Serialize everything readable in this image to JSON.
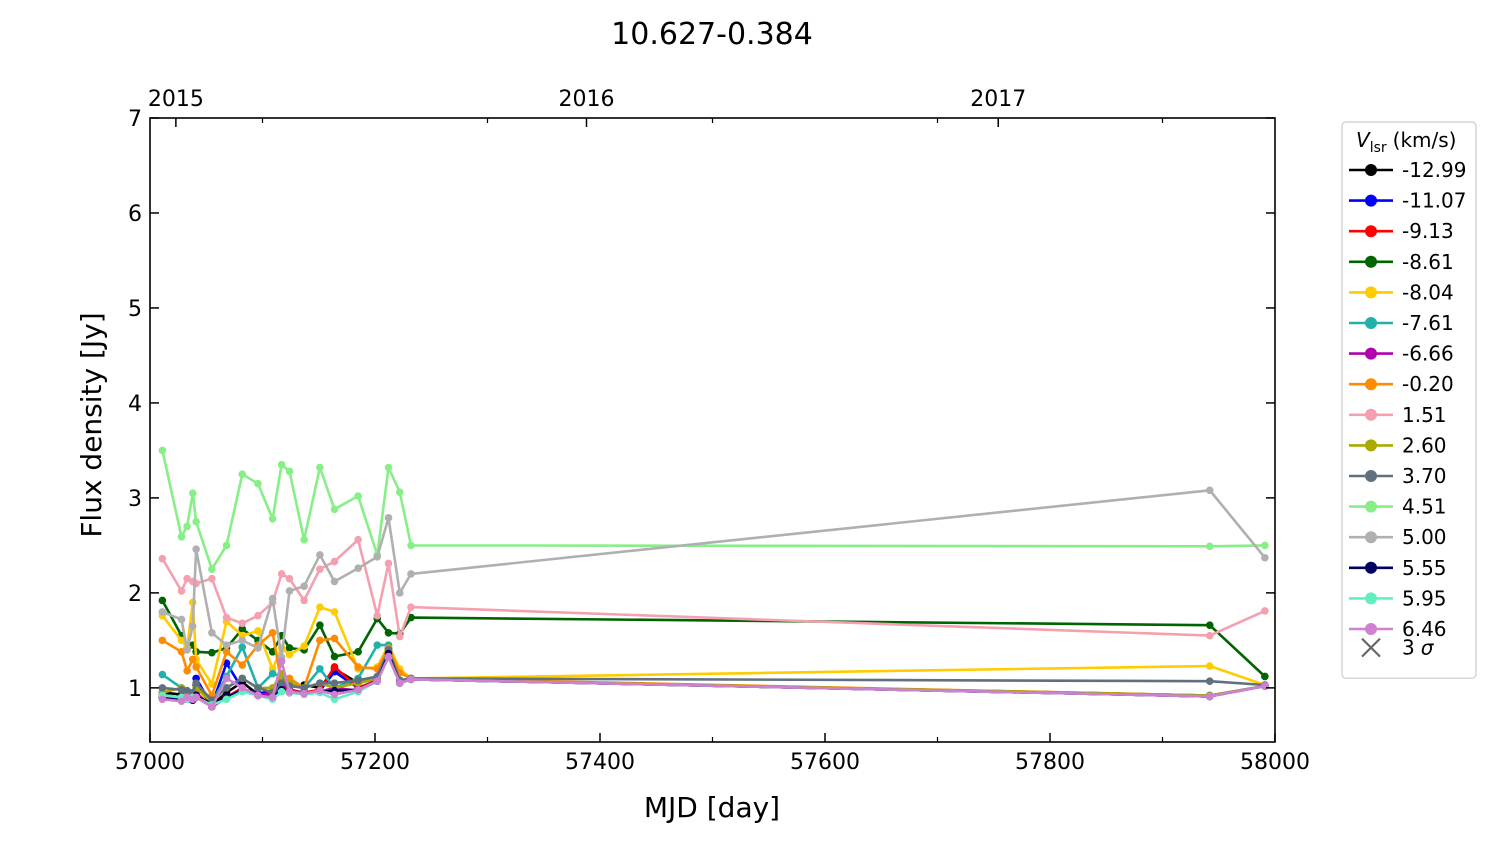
{
  "chart_data": {
    "type": "line",
    "title": "10.627-0.384",
    "xlabel": "MJD [day]",
    "ylabel": "Flux density [Jy]",
    "xlim": [
      57000,
      58000
    ],
    "ylim": [
      0.43,
      7
    ],
    "x_major_ticks": [
      57000,
      57200,
      57400,
      57600,
      57800,
      58000
    ],
    "x_minor_ticks": [
      57100,
      57300,
      57500,
      57700,
      57900
    ],
    "y_ticks": [
      1,
      2,
      3,
      4,
      5,
      6,
      7
    ],
    "top_axis": {
      "ticks": [
        {
          "label": "2015",
          "mjd": 57023
        },
        {
          "label": "2016",
          "mjd": 57388
        },
        {
          "label": "2017",
          "mjd": 57754
        }
      ]
    },
    "grid": false,
    "legend": {
      "title_symbol": "V",
      "title_subscript": "lsr",
      "title_unit": "(km/s)",
      "position": "outside-right",
      "sigma_label": "3",
      "sigma_symbol": "σ"
    },
    "x": [
      57011,
      57028,
      57033,
      57038,
      57041,
      57055,
      57068,
      57082,
      57096,
      57109,
      57117,
      57124,
      57137,
      57151,
      57164,
      57185,
      57202,
      57212,
      57222,
      57232,
      57942,
      57991
    ],
    "series": [
      {
        "name": "-12.99",
        "color": "#000000",
        "values": [
          0.95,
          0.93,
          0.9,
          0.88,
          1.03,
          0.82,
          0.95,
          1.06,
          0.93,
          0.94,
          1.1,
          1.02,
          1.03,
          1.0,
          1.2,
          1.05,
          1.1,
          1.4,
          1.07,
          1.09,
          0.91,
          1.02
        ]
      },
      {
        "name": "-11.07",
        "color": "#0000ff",
        "values": [
          0.92,
          0.9,
          0.93,
          0.9,
          1.1,
          0.82,
          1.26,
          0.99,
          0.94,
          0.97,
          1.12,
          0.98,
          0.95,
          0.97,
          1.17,
          1.0,
          1.08,
          1.42,
          1.06,
          1.09,
          0.92,
          1.02
        ]
      },
      {
        "name": "-9.13",
        "color": "#ff0000",
        "values": [
          0.9,
          0.88,
          0.9,
          0.88,
          0.95,
          0.8,
          0.9,
          1.0,
          0.92,
          0.95,
          1.05,
          0.97,
          0.95,
          0.98,
          1.22,
          1.0,
          1.08,
          1.38,
          1.06,
          1.09,
          0.91,
          1.02
        ]
      },
      {
        "name": "-8.61",
        "color": "#006400",
        "values": [
          1.92,
          1.55,
          1.42,
          1.45,
          1.38,
          1.37,
          1.42,
          1.62,
          1.5,
          1.38,
          1.55,
          1.42,
          1.4,
          1.66,
          1.33,
          1.38,
          1.73,
          1.58,
          1.57,
          1.74,
          1.66,
          1.12
        ]
      },
      {
        "name": "-8.04",
        "color": "#ffcc00",
        "values": [
          1.76,
          1.5,
          1.42,
          1.9,
          1.3,
          1.04,
          1.7,
          1.55,
          1.6,
          1.2,
          1.42,
          1.35,
          1.44,
          1.85,
          1.8,
          1.2,
          1.22,
          1.45,
          1.2,
          1.1,
          1.23,
          1.03
        ]
      },
      {
        "name": "-7.61",
        "color": "#20b2aa",
        "values": [
          1.14,
          1.0,
          0.95,
          0.92,
          1.0,
          0.85,
          1.12,
          1.43,
          1.0,
          1.15,
          1.12,
          1.05,
          1.0,
          1.2,
          1.0,
          1.1,
          1.45,
          1.45,
          1.08,
          1.09,
          0.92,
          1.02
        ]
      },
      {
        "name": "-6.66",
        "color": "#b000b0",
        "values": [
          0.9,
          0.88,
          0.9,
          0.87,
          0.92,
          0.8,
          0.9,
          0.98,
          0.92,
          0.93,
          1.0,
          0.95,
          0.94,
          0.96,
          1.0,
          0.97,
          1.07,
          1.38,
          1.05,
          1.09,
          0.91,
          1.02
        ]
      },
      {
        "name": "-0.20",
        "color": "#ff8c00",
        "values": [
          1.5,
          1.38,
          1.18,
          1.3,
          1.22,
          0.92,
          1.38,
          1.24,
          1.45,
          1.58,
          1.05,
          1.1,
          1.0,
          1.5,
          1.52,
          1.22,
          1.2,
          1.42,
          1.16,
          1.1,
          0.92,
          1.02
        ]
      },
      {
        "name": "1.51",
        "color": "#f4a0b0",
        "values": [
          2.36,
          2.02,
          2.15,
          2.12,
          2.1,
          2.15,
          1.74,
          1.68,
          1.76,
          1.9,
          2.2,
          2.15,
          1.92,
          2.25,
          2.33,
          2.56,
          1.76,
          2.31,
          1.54,
          1.85,
          1.55,
          1.81
        ]
      },
      {
        "name": "2.60",
        "color": "#aaaa00",
        "values": [
          0.95,
          1.0,
          0.95,
          0.9,
          1.0,
          0.85,
          1.0,
          1.1,
          1.0,
          1.0,
          1.15,
          1.05,
          1.0,
          1.05,
          1.0,
          1.05,
          1.1,
          1.4,
          1.06,
          1.09,
          0.92,
          1.02
        ]
      },
      {
        "name": "3.70",
        "color": "#607080",
        "values": [
          1.0,
          0.98,
          0.97,
          0.95,
          1.05,
          0.87,
          1.0,
          1.1,
          1.0,
          0.95,
          1.05,
          1.02,
          1.0,
          1.05,
          1.05,
          1.08,
          1.12,
          1.4,
          1.08,
          1.1,
          1.07,
          1.03
        ]
      },
      {
        "name": "4.51",
        "color": "#88ee88",
        "values": [
          3.5,
          2.59,
          2.7,
          3.05,
          2.75,
          2.25,
          2.5,
          3.25,
          3.15,
          2.78,
          3.35,
          3.28,
          2.56,
          3.32,
          2.88,
          3.02,
          2.4,
          3.32,
          3.06,
          2.5,
          2.49,
          2.5
        ]
      },
      {
        "name": "5.00",
        "color": "#b0b0b0",
        "values": [
          1.8,
          1.72,
          1.4,
          1.65,
          2.46,
          1.58,
          1.45,
          1.5,
          1.42,
          1.94,
          1.32,
          2.02,
          2.07,
          2.4,
          2.12,
          2.26,
          2.38,
          2.79,
          2.0,
          2.2,
          3.08,
          2.37
        ]
      },
      {
        "name": "5.55",
        "color": "#000060",
        "values": [
          0.9,
          0.88,
          0.88,
          0.87,
          0.92,
          0.82,
          0.9,
          0.98,
          0.92,
          0.9,
          0.98,
          0.95,
          0.94,
          0.96,
          0.97,
          0.98,
          1.07,
          1.36,
          1.05,
          1.09,
          0.91,
          1.02
        ]
      },
      {
        "name": "5.95",
        "color": "#60f0c0",
        "values": [
          0.92,
          0.9,
          0.88,
          0.9,
          0.9,
          0.82,
          0.88,
          0.96,
          0.92,
          0.88,
          0.96,
          0.95,
          0.93,
          0.95,
          0.88,
          0.96,
          1.07,
          1.32,
          1.05,
          1.09,
          0.91,
          1.02
        ]
      },
      {
        "name": "6.46",
        "color": "#d080d0",
        "values": [
          0.88,
          0.86,
          0.9,
          0.88,
          0.9,
          0.8,
          1.1,
          1.0,
          0.92,
          0.9,
          1.28,
          0.96,
          0.94,
          0.97,
          0.93,
          0.98,
          1.07,
          1.33,
          1.05,
          1.09,
          0.91,
          1.02
        ]
      }
    ]
  }
}
